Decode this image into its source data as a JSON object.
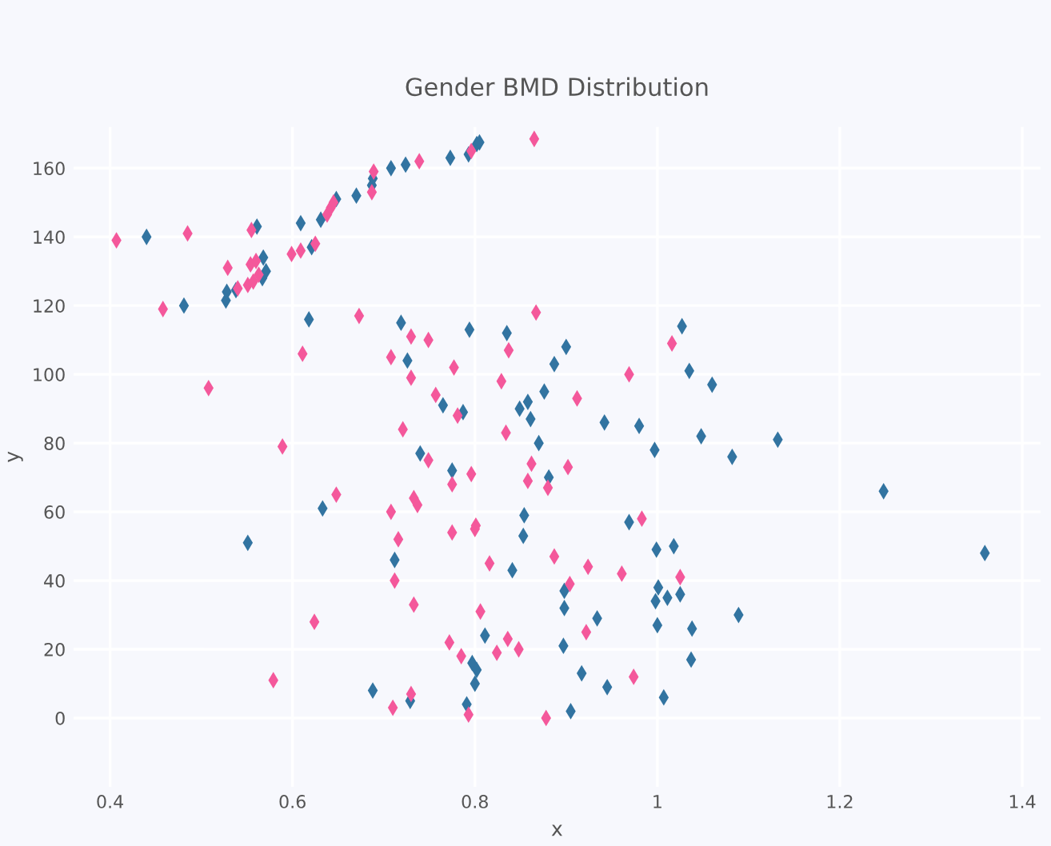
{
  "chart_data": {
    "type": "scatter",
    "title": "Gender BMD Distribution",
    "xlabel": "x",
    "ylabel": "y",
    "xlim": [
      0.36,
      1.42
    ],
    "ylim": [
      -20,
      172
    ],
    "xticks": [
      0.4,
      0.6,
      0.8,
      1,
      1.2,
      1.4
    ],
    "yticks": [
      0,
      20,
      40,
      60,
      80,
      100,
      120,
      140,
      160
    ],
    "grid": true,
    "marker": "diamond",
    "series": [
      {
        "color": "#3274a1",
        "x": [
          0.44,
          0.481,
          0.527,
          0.528,
          0.538,
          0.561,
          0.568,
          0.567,
          0.571,
          0.609,
          0.618,
          0.621,
          0.631,
          0.648,
          0.67,
          0.687,
          0.688,
          0.708,
          0.719,
          0.724,
          0.726,
          0.765,
          0.773,
          0.787,
          0.793,
          0.794,
          0.802,
          0.805,
          0.835,
          0.9,
          0.887,
          0.876,
          0.849,
          0.858,
          0.861,
          1.027,
          1.035,
          1.06,
          0.942,
          0.98,
          1.048,
          1.132,
          0.87,
          0.997,
          1.082,
          1.248,
          0.881,
          0.854,
          0.853,
          0.969,
          0.999,
          1.018,
          1.359,
          0.841,
          0.898,
          0.898,
          1.001,
          0.998,
          1.011,
          1.025,
          0.934,
          1.089,
          1.0,
          1.038,
          0.897,
          1.037,
          0.917,
          0.945,
          1.007,
          0.905,
          0.74,
          0.775,
          0.633,
          0.551,
          0.712,
          0.811,
          0.797,
          0.802,
          0.8,
          0.688,
          0.729,
          0.791
        ],
        "values": [
          140,
          120,
          121.5,
          124,
          124.5,
          143,
          134,
          128,
          130,
          144,
          116,
          137,
          145,
          151,
          152,
          155,
          157,
          160,
          115,
          161,
          104,
          91,
          163,
          89,
          164,
          113,
          167,
          167.5,
          112,
          108,
          103,
          95,
          90,
          92,
          87,
          114,
          101,
          97,
          86,
          85,
          82,
          81,
          80,
          78,
          76,
          66,
          70,
          59,
          53,
          57,
          49,
          50,
          48,
          43,
          37,
          32,
          38,
          34,
          35,
          36,
          29,
          30,
          27,
          26,
          21,
          17,
          13,
          9,
          6,
          2,
          77,
          72,
          61,
          51,
          46,
          24,
          16,
          14,
          10,
          8,
          5,
          4
        ]
      },
      {
        "color": "#f4589b",
        "x": [
          0.407,
          0.458,
          0.485,
          0.508,
          0.529,
          0.54,
          0.551,
          0.555,
          0.554,
          0.557,
          0.56,
          0.563,
          0.599,
          0.609,
          0.625,
          0.611,
          0.638,
          0.642,
          0.645,
          0.673,
          0.687,
          0.689,
          0.708,
          0.73,
          0.73,
          0.739,
          0.749,
          0.757,
          0.777,
          0.781,
          0.796,
          0.829,
          0.837,
          0.865,
          0.867,
          1.016,
          0.969,
          0.912,
          0.834,
          0.862,
          0.902,
          0.858,
          0.88,
          0.983,
          0.887,
          0.924,
          0.904,
          0.961,
          1.025,
          0.836,
          0.848,
          0.922,
          0.974,
          0.878,
          0.589,
          0.749,
          0.775,
          0.796,
          0.721,
          0.648,
          0.708,
          0.733,
          0.737,
          0.716,
          0.775,
          0.8,
          0.801,
          0.712,
          0.816,
          0.733,
          0.806,
          0.624,
          0.772,
          0.785,
          0.824,
          0.579,
          0.73,
          0.71,
          0.793
        ],
        "values": [
          139,
          119,
          141,
          96,
          131,
          125,
          126,
          142,
          132,
          127,
          133,
          129,
          135,
          136,
          138,
          106,
          146.5,
          148.5,
          150,
          117,
          153,
          159,
          105,
          111,
          99,
          162,
          110,
          94,
          102,
          88,
          165,
          98,
          107,
          168.5,
          118,
          109,
          100,
          93,
          83,
          74,
          73,
          69,
          67,
          58,
          47,
          44,
          39,
          42,
          41,
          23,
          20,
          25,
          12,
          0,
          79,
          75,
          68,
          71,
          84,
          65,
          60,
          64,
          62,
          52,
          54,
          55,
          56,
          40,
          45,
          33,
          31,
          28,
          22,
          18,
          19,
          11,
          7,
          3,
          1
        ]
      }
    ]
  }
}
